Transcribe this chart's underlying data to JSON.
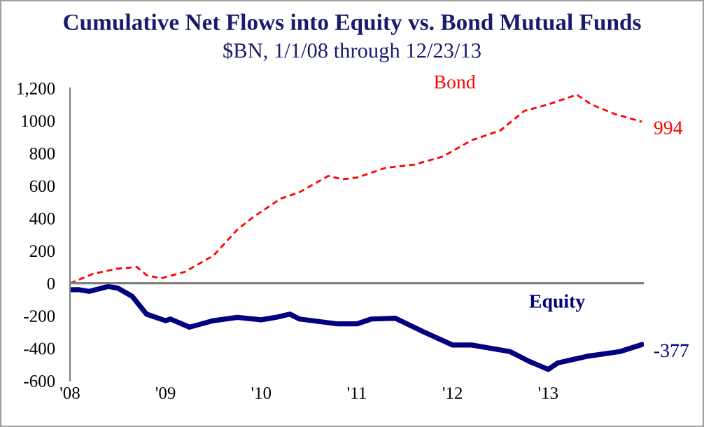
{
  "chart_data": {
    "type": "line",
    "title": "Cumulative Net Flows into Equity vs. Bond Mutual Funds",
    "subtitle": "$BN, 1/1/08 through 12/23/13",
    "xlim": [
      2008,
      2014
    ],
    "xticks": [
      {
        "value": 2008,
        "label": "'08"
      },
      {
        "value": 2009,
        "label": "'09"
      },
      {
        "value": 2010,
        "label": "'10"
      },
      {
        "value": 2011,
        "label": "'11"
      },
      {
        "value": 2012,
        "label": "'12"
      },
      {
        "value": 2013,
        "label": "'13"
      }
    ],
    "ylim": [
      -600,
      1200
    ],
    "yticks": [
      -600,
      -400,
      -200,
      0,
      200,
      400,
      600,
      800,
      1000,
      {
        "value": 1200,
        "label": "1,200"
      }
    ],
    "grid": false,
    "legend": false,
    "ref_lines": [
      {
        "axis": "y",
        "value": 0,
        "color": "#808080"
      }
    ],
    "series": [
      {
        "name": "Bond",
        "color": "#ff0000",
        "line_style": "dashed",
        "x": [
          2008.0,
          2008.25,
          2008.5,
          2008.7,
          2008.8,
          2008.95,
          2009.2,
          2009.5,
          2009.75,
          2009.9,
          2010.2,
          2010.4,
          2010.7,
          2010.85,
          2011.0,
          2011.3,
          2011.6,
          2011.9,
          2012.2,
          2012.5,
          2012.75,
          2013.0,
          2013.3,
          2013.45,
          2013.7,
          2013.98
        ],
        "values": [
          0,
          60,
          90,
          100,
          50,
          30,
          70,
          170,
          330,
          400,
          520,
          560,
          660,
          640,
          650,
          710,
          730,
          780,
          880,
          940,
          1060,
          1100,
          1160,
          1100,
          1040,
          994
        ]
      },
      {
        "name": "Equity",
        "color": "#000080",
        "line_style": "solid",
        "x": [
          2008.0,
          2008.1,
          2008.2,
          2008.4,
          2008.5,
          2008.65,
          2008.8,
          2009.0,
          2009.05,
          2009.25,
          2009.5,
          2009.75,
          2010.0,
          2010.15,
          2010.3,
          2010.4,
          2010.8,
          2011.0,
          2011.15,
          2011.4,
          2011.7,
          2012.0,
          2012.2,
          2012.6,
          2012.8,
          2013.0,
          2013.1,
          2013.4,
          2013.75,
          2013.98
        ],
        "values": [
          -40,
          -40,
          -50,
          -20,
          -30,
          -80,
          -190,
          -230,
          -220,
          -270,
          -230,
          -210,
          -225,
          -210,
          -190,
          -220,
          -250,
          -250,
          -220,
          -215,
          -300,
          -380,
          -380,
          -420,
          -480,
          -530,
          -490,
          -450,
          -420,
          -377
        ]
      }
    ],
    "annotations": [
      {
        "text": "994",
        "x": 2013.98,
        "y": 994
      },
      {
        "text": "-377",
        "x": 2013.98,
        "y": -377
      }
    ]
  }
}
